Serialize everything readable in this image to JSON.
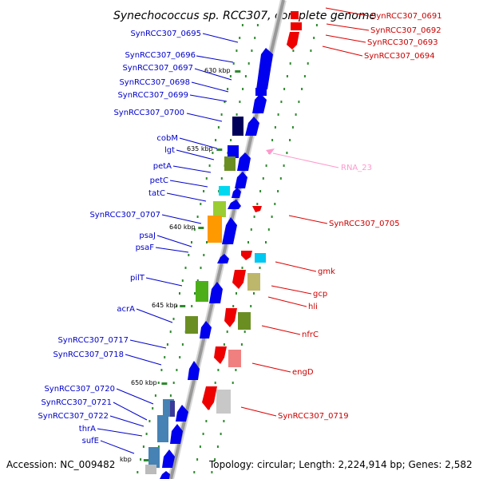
{
  "title": "Synechococcus sp. RCC307, complete genome",
  "footer": {
    "accession": "Accession: NC_009482",
    "topology": "Topology: circular; Length: 2,224,914 bp; Genes: 2,582"
  },
  "colors": {
    "plus_strand": "#0000ff",
    "minus_strand": "#ff0000",
    "rna": "#ff99cc",
    "backbone": "#999999",
    "tick": "#2e8b2e"
  },
  "ticks": [
    {
      "label": "630 kbp"
    },
    {
      "label": "635 kbp"
    },
    {
      "label": "640 kbp"
    },
    {
      "label": "645 kbp"
    },
    {
      "label": "650 kbp"
    },
    {
      "label": "kbp"
    }
  ],
  "left_labels": [
    "SynRCC307_0695",
    "SynRCC307_0696",
    "SynRCC307_0697",
    "SynRCC307_0698",
    "SynRCC307_0699",
    "SynRCC307_0700",
    "cobM",
    "lgt",
    "petA",
    "petC",
    "tatC",
    "SynRCC307_0707",
    "psaJ",
    "psaF",
    "pilT",
    "acrA",
    "SynRCC307_0717",
    "SynRCC307_0718",
    "SynRCC307_0720",
    "SynRCC307_0721",
    "SynRCC307_0722",
    "thrA",
    "sufE"
  ],
  "right_labels": [
    "SynRCC307_0691",
    "SynRCC307_0692",
    "SynRCC307_0693",
    "SynRCC307_0694",
    "RNA_23",
    "SynRCC307_0705",
    "gmk",
    "gcp",
    "hli",
    "nfrC",
    "engD",
    "SynRCC307_0719"
  ]
}
